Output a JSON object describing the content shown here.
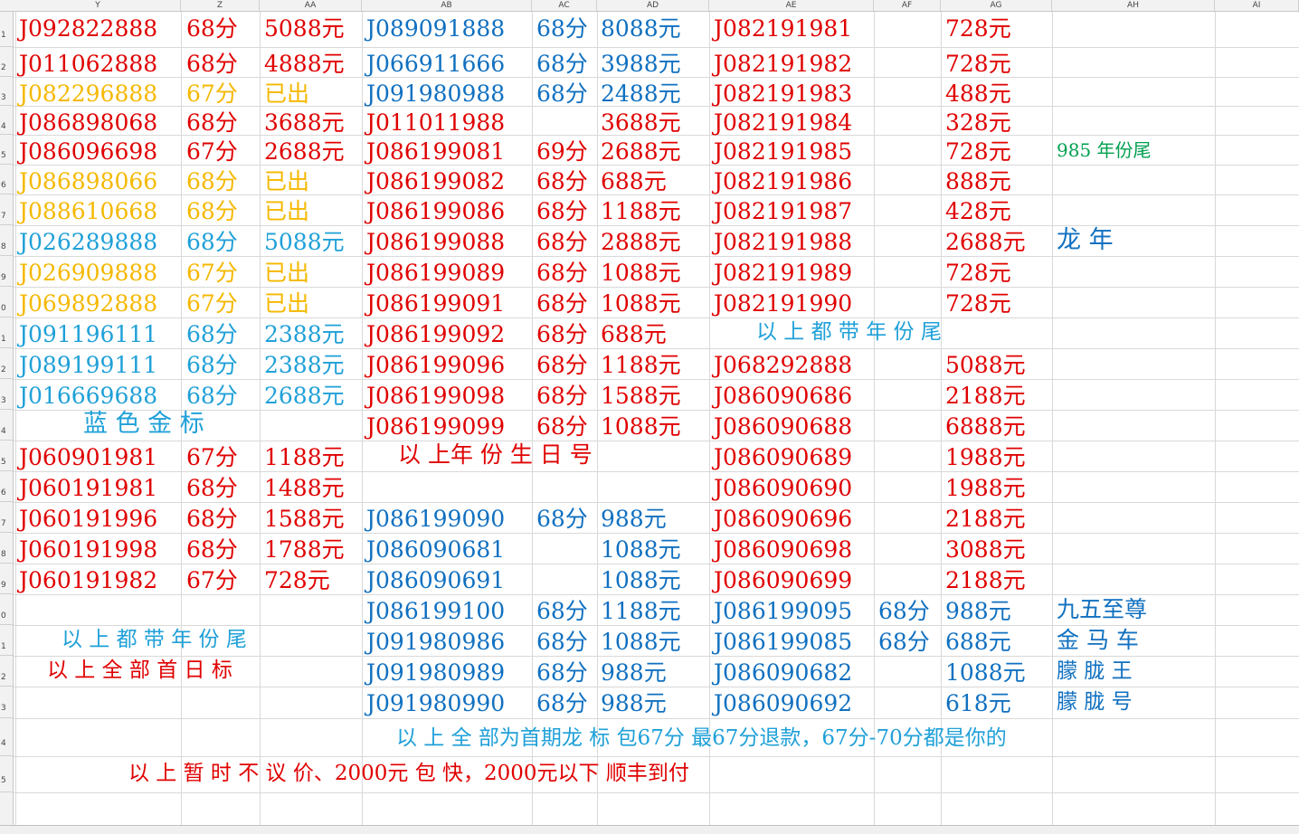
{
  "columns": [
    "Y",
    "Z",
    "AA",
    "AB",
    "AC",
    "AD",
    "AE",
    "AF",
    "AG",
    "AH",
    "AI"
  ],
  "rows": [
    "1",
    "2",
    "3",
    "4",
    "5",
    "6",
    "7",
    "8",
    "9",
    "0",
    "1",
    "2",
    "3",
    "4",
    "5",
    "6",
    "7",
    "8",
    "9",
    "0",
    "1",
    "2",
    "3",
    "4",
    "5"
  ],
  "col1": [
    {
      "num": "J092822888",
      "score": "68分",
      "price": "5088元",
      "c": "red"
    },
    {
      "num": "J011062888",
      "score": "68分",
      "price": "4888元",
      "c": "red"
    },
    {
      "num": "J082296888",
      "score": "67分",
      "price": "已出",
      "c": "orange"
    },
    {
      "num": "J086898068",
      "score": "68分",
      "price": "3688元",
      "c": "red"
    },
    {
      "num": "J086096698",
      "score": "67分",
      "price": "2688元",
      "c": "red"
    },
    {
      "num": "J086898066",
      "score": "68分",
      "price": "已出",
      "c": "orange"
    },
    {
      "num": "J088610668",
      "score": "68分",
      "price": "已出",
      "c": "orange"
    },
    {
      "num": "J026289888",
      "score": "68分",
      "price": "5088元",
      "c": "cyan"
    },
    {
      "num": "J026909888",
      "score": "67分",
      "price": "已出",
      "c": "orange"
    },
    {
      "num": "J069892888",
      "score": "67分",
      "price": "已出",
      "c": "orange"
    },
    {
      "num": "J091196111",
      "score": "68分",
      "price": "2388元",
      "c": "cyan"
    },
    {
      "num": "J089199111",
      "score": "68分",
      "price": "2388元",
      "c": "cyan"
    },
    {
      "num": "J016669688",
      "score": "68分",
      "price": "2688元",
      "c": "cyan"
    }
  ],
  "col1b": [
    {
      "num": "J060901981",
      "score": "67分",
      "price": "1188元"
    },
    {
      "num": "J060191981",
      "score": "68分",
      "price": "1488元"
    },
    {
      "num": "J060191996",
      "score": "68分",
      "price": "1588元"
    },
    {
      "num": "J060191998",
      "score": "68分",
      "price": "1788元"
    },
    {
      "num": "J060191982",
      "score": "67分",
      "price": "728元"
    }
  ],
  "col2": [
    {
      "num": "J089091888",
      "score": "68分",
      "price": "8088元",
      "c": "blue"
    },
    {
      "num": "J066911666",
      "score": "68分",
      "price": "3988元",
      "c": "blue"
    },
    {
      "num": "J091980988",
      "score": "68分",
      "price": "2488元",
      "c": "blue"
    },
    {
      "num": "J011011988",
      "score": "",
      "price": "3688元",
      "c": "red"
    },
    {
      "num": "J086199081",
      "score": "69分",
      "price": "2688元",
      "c": "red"
    },
    {
      "num": "J086199082",
      "score": "68分",
      "price": "688元",
      "c": "red"
    },
    {
      "num": "J086199086",
      "score": "68分",
      "price": "1188元",
      "c": "red"
    },
    {
      "num": "J086199088",
      "score": "68分",
      "price": "2888元",
      "c": "red"
    },
    {
      "num": "J086199089",
      "score": "68分",
      "price": "1088元",
      "c": "red"
    },
    {
      "num": "J086199091",
      "score": "68分",
      "price": "1088元",
      "c": "red"
    },
    {
      "num": "J086199092",
      "score": "68分",
      "price": "688元",
      "c": "red"
    },
    {
      "num": "J086199096",
      "score": "68分",
      "price": "1188元",
      "c": "red"
    },
    {
      "num": "J086199098",
      "score": "68分",
      "price": "1588元",
      "c": "red"
    },
    {
      "num": "J086199099",
      "score": "68分",
      "price": "1088元",
      "c": "red"
    }
  ],
  "col2b": [
    {
      "num": "J086199090",
      "score": "68分",
      "price": "988元"
    },
    {
      "num": "J086090681",
      "score": "",
      "price": "1088元"
    },
    {
      "num": "J086090691",
      "score": "",
      "price": "1088元"
    },
    {
      "num": "J086199100",
      "score": "68分",
      "price": "1188元"
    },
    {
      "num": "J091980986",
      "score": "68分",
      "price": "1088元"
    },
    {
      "num": "J091980989",
      "score": "68分",
      "price": "988元"
    },
    {
      "num": "J091980990",
      "score": "68分",
      "price": "988元"
    }
  ],
  "col3": [
    {
      "num": "J082191981",
      "price": "728元"
    },
    {
      "num": "J082191982",
      "price": "728元"
    },
    {
      "num": "J082191983",
      "price": "488元"
    },
    {
      "num": "J082191984",
      "price": "328元"
    },
    {
      "num": "J082191985",
      "price": "728元"
    },
    {
      "num": "J082191986",
      "price": "888元"
    },
    {
      "num": "J082191987",
      "price": "428元"
    },
    {
      "num": "J082191988",
      "price": "2688元"
    },
    {
      "num": "J082191989",
      "price": "728元"
    },
    {
      "num": "J082191990",
      "price": "728元"
    }
  ],
  "col3b": [
    {
      "num": "J068292888",
      "price": "5088元"
    },
    {
      "num": "J086090686",
      "price": "2188元"
    },
    {
      "num": "J086090688",
      "price": "6888元"
    },
    {
      "num": "J086090689",
      "price": "1988元"
    },
    {
      "num": "J086090690",
      "price": "1988元"
    },
    {
      "num": "J086090696",
      "price": "2188元"
    },
    {
      "num": "J086090698",
      "price": "3088元"
    },
    {
      "num": "J086090699",
      "price": "2188元"
    }
  ],
  "col3c": [
    {
      "num": "J086199095",
      "score": "68分",
      "price": "988元"
    },
    {
      "num": "J086199085",
      "score": "68分",
      "price": "688元"
    },
    {
      "num": "J086090682",
      "score": "",
      "price": "1088元"
    },
    {
      "num": "J086090692",
      "score": "",
      "price": "618元"
    }
  ],
  "ah_notes": {
    "n985": "985 年份尾",
    "dragon": "龙 年",
    "jiuwu": "九五至尊",
    "jinma": "金 马 车",
    "menglong_wang": "朦 胧 王",
    "menglong_hao": "朦 胧 号"
  },
  "notes": {
    "blue_gold": "蓝 色 金 标",
    "year_birthday": "以 上年 份 生 日 号",
    "all_year_tail_1": "以 上 都 带 年 份  尾",
    "all_year_tail_2": "以 上 都 带 年 份  尾",
    "all_first_day": "以 上 全 部 首 日 标",
    "dragon_note": "以 上 全 部为首期龙 标 包67分 最67分退款，67分-70分都是你的",
    "no_bargain": "以 上 暂 时 不 议 价、2000元 包 快，2000元以下  顺丰到付"
  }
}
